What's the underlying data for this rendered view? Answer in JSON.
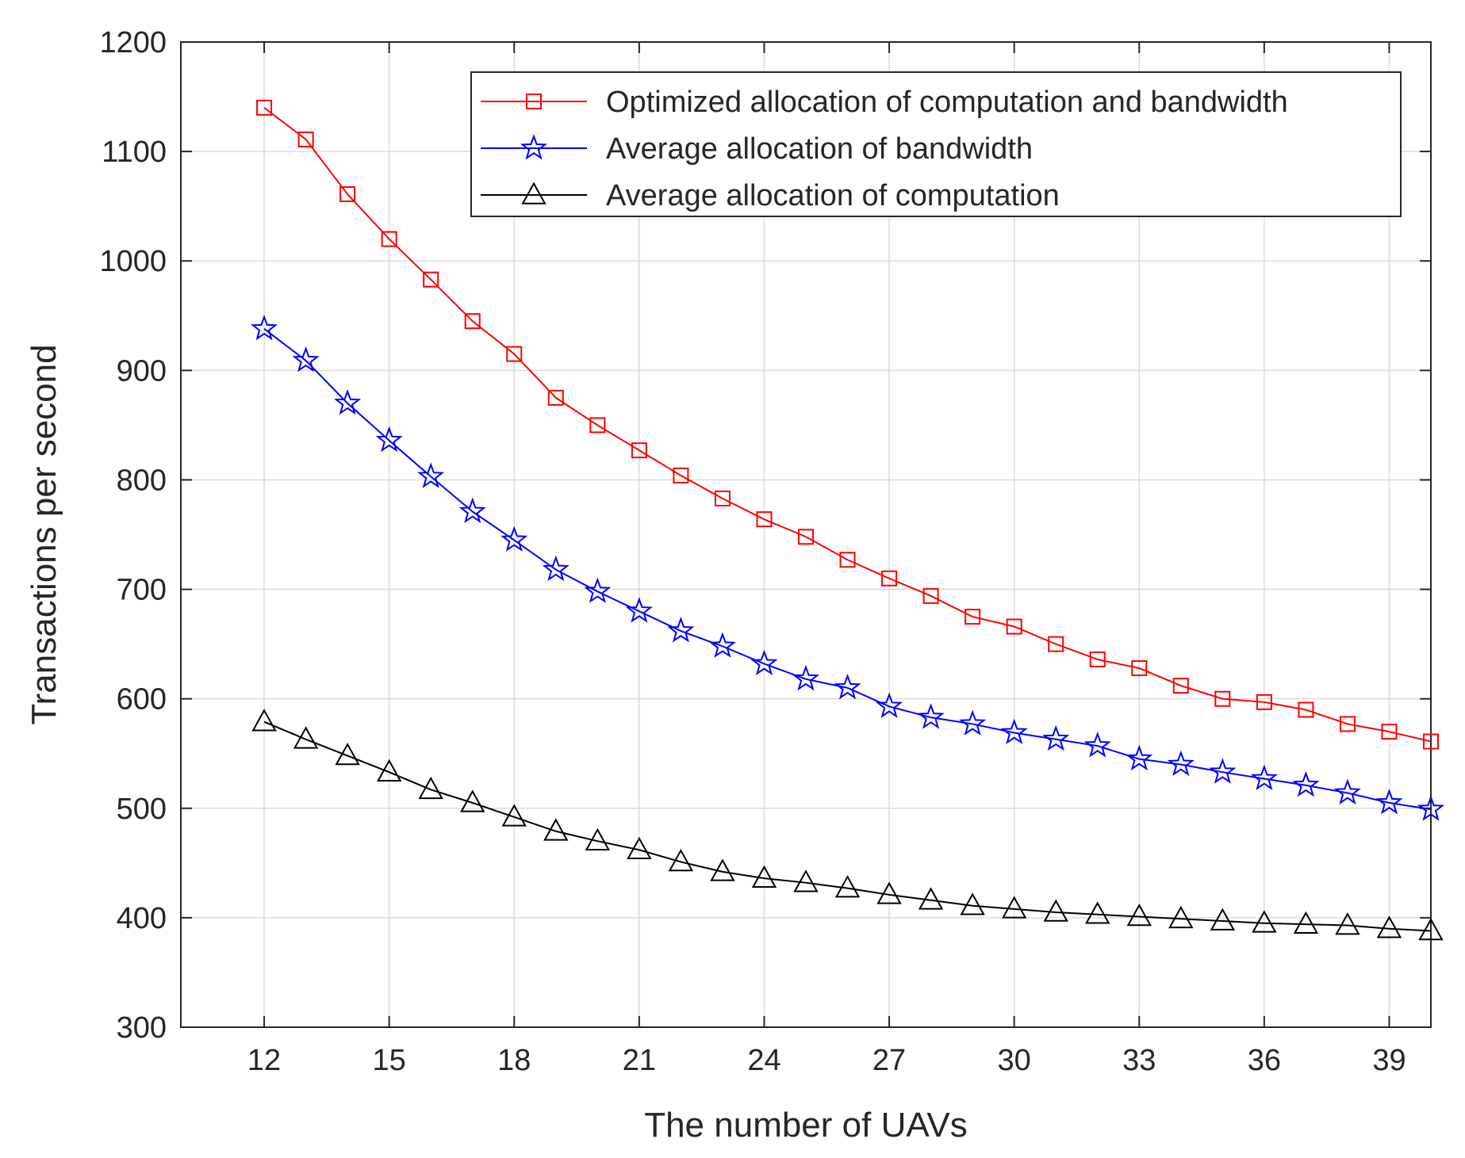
{
  "chart_data": {
    "type": "line",
    "title": "",
    "xlabel": "The number of UAVs",
    "ylabel": "Transactions per second",
    "xlim": [
      10,
      40
    ],
    "ylim": [
      300,
      1200
    ],
    "xticks": [
      12,
      15,
      18,
      21,
      24,
      27,
      30,
      33,
      36,
      39
    ],
    "yticks": [
      300,
      400,
      500,
      600,
      700,
      800,
      900,
      1000,
      1100,
      1200
    ],
    "grid": true,
    "legend_position": "top-right",
    "x": [
      12,
      13,
      14,
      15,
      16,
      17,
      18,
      19,
      20,
      21,
      22,
      23,
      24,
      25,
      26,
      27,
      28,
      29,
      30,
      31,
      32,
      33,
      34,
      35,
      36,
      37,
      38,
      39,
      40
    ],
    "series": [
      {
        "name": "Optimized allocation of computation and bandwidth",
        "color": "#ff0000",
        "marker": "square",
        "values": [
          1140,
          1111,
          1061,
          1020,
          983,
          945,
          915,
          875,
          850,
          827,
          804,
          783,
          764,
          748,
          727,
          710,
          694,
          675,
          666,
          650,
          636,
          628,
          612,
          600,
          597,
          590,
          577,
          570,
          561
        ]
      },
      {
        "name": "Average allocation of bandwidth",
        "color": "#0000ff",
        "marker": "star",
        "values": [
          938,
          909,
          870,
          836,
          803,
          771,
          745,
          718,
          698,
          680,
          662,
          648,
          632,
          618,
          610,
          593,
          583,
          577,
          569,
          563,
          557,
          545,
          540,
          533,
          527,
          521,
          514,
          505,
          499
        ]
      },
      {
        "name": "Average allocation of computation",
        "color": "#000000",
        "marker": "triangle",
        "values": [
          579,
          563,
          548,
          533,
          517,
          505,
          492,
          479,
          470,
          462,
          451,
          442,
          436,
          432,
          427,
          421,
          416,
          411,
          408,
          405,
          403,
          401,
          399,
          397,
          395,
          394,
          393,
          390,
          388
        ]
      }
    ]
  }
}
